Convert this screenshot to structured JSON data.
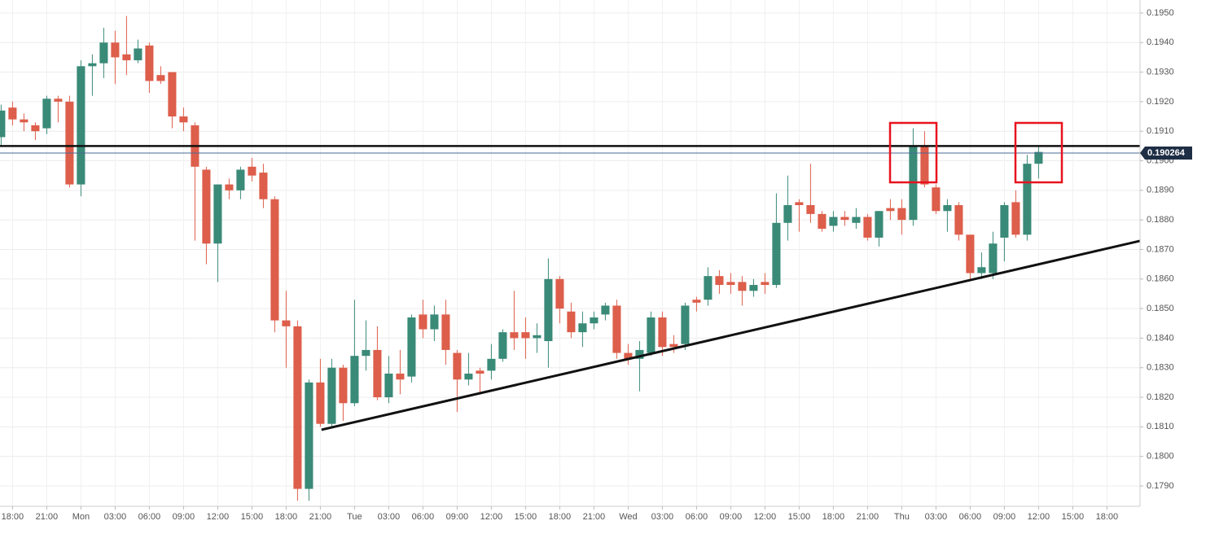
{
  "chart_data": {
    "type": "candlestick",
    "x": [
      -1,
      0,
      1,
      2,
      3,
      4,
      5,
      6,
      7,
      8,
      9,
      10,
      11,
      12,
      13,
      14,
      15,
      16,
      17,
      18,
      19,
      20,
      21,
      22,
      23,
      24,
      25,
      26,
      27,
      28,
      29,
      30,
      31,
      32,
      33,
      34,
      35,
      36,
      37,
      38,
      39,
      40,
      41,
      42,
      43,
      44,
      45,
      46,
      47,
      48,
      49,
      50,
      51,
      52,
      53,
      54,
      55,
      56,
      57,
      58,
      59,
      60,
      61,
      62,
      63,
      64,
      65,
      66,
      67,
      68,
      69,
      70,
      71,
      72,
      73,
      74,
      75,
      76,
      77,
      78,
      79,
      80,
      81,
      82,
      83,
      84,
      85,
      86,
      87,
      88,
      89,
      90
    ],
    "open": [
      0.1908,
      0.1918,
      0.1914,
      0.1912,
      0.1911,
      0.1921,
      0.192,
      0.1892,
      0.1932,
      0.1933,
      0.194,
      0.1936,
      0.1934,
      0.1939,
      0.1929,
      0.193,
      0.1915,
      0.1912,
      0.1897,
      0.1872,
      0.1892,
      0.189,
      0.1898,
      0.1896,
      0.1887,
      0.1846,
      0.1844,
      0.1789,
      0.1825,
      0.1811,
      0.183,
      0.1818,
      0.1834,
      0.1836,
      0.182,
      0.1828,
      0.1827,
      0.1848,
      0.1843,
      0.1848,
      0.1835,
      0.1826,
      0.1829,
      0.1829,
      0.1833,
      0.1842,
      0.1842,
      0.184,
      0.1839,
      0.186,
      0.1849,
      0.1842,
      0.1845,
      0.1848,
      0.1851,
      0.1835,
      0.1833,
      0.1835,
      0.1847,
      0.1838,
      0.1838,
      0.1853,
      0.1853,
      0.1861,
      0.1859,
      0.1859,
      0.1856,
      0.1859,
      0.1858,
      0.1879,
      0.1886,
      0.1885,
      0.1882,
      0.1878,
      0.1881,
      0.1879,
      0.1881,
      0.1874,
      0.1884,
      0.1884,
      0.188,
      0.1905,
      0.1891,
      0.1883,
      0.1885,
      0.1875,
      0.1862,
      0.1862,
      0.1874,
      0.1886,
      0.1875,
      0.1899
    ],
    "high": [
      0.1919,
      0.192,
      0.1916,
      0.1913,
      0.1922,
      0.1922,
      0.1922,
      0.1934,
      0.1936,
      0.1945,
      0.1944,
      0.1949,
      0.1941,
      0.194,
      0.1932,
      0.193,
      0.1918,
      0.1913,
      0.1898,
      0.1892,
      0.1894,
      0.1898,
      0.1901,
      0.1899,
      0.1888,
      0.1856,
      0.1846,
      0.1826,
      0.1833,
      0.1833,
      0.1831,
      0.1853,
      0.1846,
      0.1844,
      0.1834,
      0.1836,
      0.1848,
      0.1853,
      0.1851,
      0.1853,
      0.1836,
      0.1835,
      0.183,
      0.1838,
      0.1843,
      0.1856,
      0.1847,
      0.1845,
      0.1867,
      0.1861,
      0.1852,
      0.1849,
      0.1849,
      0.1852,
      0.1853,
      0.1838,
      0.1839,
      0.1849,
      0.1849,
      0.1841,
      0.1852,
      0.1854,
      0.1864,
      0.1863,
      0.1862,
      0.1861,
      0.186,
      0.1862,
      0.1889,
      0.1895,
      0.1887,
      0.1899,
      0.1883,
      0.1883,
      0.1883,
      0.1884,
      0.1882,
      0.1883,
      0.1887,
      0.1887,
      0.1911,
      0.191,
      0.1892,
      0.1887,
      0.1886,
      0.1875,
      0.1869,
      0.1876,
      0.1886,
      0.189,
      0.1902,
      0.1905
    ],
    "low": [
      0.1905,
      0.1912,
      0.191,
      0.1907,
      0.1909,
      0.1913,
      0.1891,
      0.1888,
      0.1922,
      0.1928,
      0.1926,
      0.1929,
      0.1933,
      0.1923,
      0.1926,
      0.1911,
      0.191,
      0.1873,
      0.1865,
      0.1859,
      0.1887,
      0.1887,
      0.1893,
      0.1884,
      0.1842,
      0.183,
      0.1785,
      0.1785,
      0.181,
      0.181,
      0.1812,
      0.1817,
      0.1829,
      0.1819,
      0.1818,
      0.1821,
      0.1825,
      0.184,
      0.1839,
      0.1831,
      0.1815,
      0.1824,
      0.1821,
      0.1826,
      0.1832,
      0.1836,
      0.1833,
      0.1835,
      0.183,
      0.1845,
      0.184,
      0.1837,
      0.1843,
      0.1846,
      0.1833,
      0.1831,
      0.1822,
      0.1834,
      0.1834,
      0.1835,
      0.1836,
      0.1849,
      0.1851,
      0.1855,
      0.1855,
      0.1851,
      0.1854,
      0.1855,
      0.1857,
      0.1873,
      0.1876,
      0.1879,
      0.1876,
      0.1876,
      0.1878,
      0.1877,
      0.1873,
      0.1871,
      0.188,
      0.1875,
      0.1878,
      0.1891,
      0.1882,
      0.1876,
      0.1873,
      0.186,
      0.186,
      0.186,
      0.1866,
      0.1874,
      0.1873,
      0.1894
    ],
    "close": [
      0.1917,
      0.1914,
      0.1913,
      0.191,
      0.1921,
      0.192,
      0.1892,
      0.1932,
      0.1933,
      0.194,
      0.1935,
      0.1934,
      0.1938,
      0.1927,
      0.1927,
      0.1915,
      0.1913,
      0.1898,
      0.1872,
      0.1892,
      0.189,
      0.1897,
      0.1895,
      0.1887,
      0.1846,
      0.1844,
      0.1789,
      0.1825,
      0.1811,
      0.183,
      0.1818,
      0.1834,
      0.1836,
      0.182,
      0.1828,
      0.1826,
      0.1847,
      0.1843,
      0.1848,
      0.1836,
      0.1826,
      0.1828,
      0.1828,
      0.1833,
      0.1842,
      0.184,
      0.184,
      0.1841,
      0.186,
      0.185,
      0.1842,
      0.1845,
      0.1847,
      0.1851,
      0.1835,
      0.1833,
      0.1836,
      0.1847,
      0.1837,
      0.1837,
      0.1851,
      0.1852,
      0.1861,
      0.1858,
      0.1858,
      0.1856,
      0.1858,
      0.1858,
      0.1879,
      0.1885,
      0.1885,
      0.1882,
      0.1877,
      0.1881,
      0.188,
      0.1881,
      0.1874,
      0.1883,
      0.1883,
      0.188,
      0.1905,
      0.1892,
      0.1883,
      0.1885,
      0.1875,
      0.1862,
      0.1864,
      0.1872,
      0.1885,
      0.1875,
      0.1899,
      0.1903
    ],
    "up_color": "#3a8a78",
    "down_color": "#dd5e4b",
    "xlim": [
      -1.1,
      98.9
    ],
    "ylim": [
      0.17831,
      0.19544
    ],
    "xticks": [
      {
        "value": 0,
        "label": "18:00"
      },
      {
        "value": 3,
        "label": "21:00"
      },
      {
        "value": 6,
        "label": "Mon"
      },
      {
        "value": 9,
        "label": "03:00"
      },
      {
        "value": 12,
        "label": "06:00"
      },
      {
        "value": 15,
        "label": "09:00"
      },
      {
        "value": 18,
        "label": "12:00"
      },
      {
        "value": 21,
        "label": "15:00"
      },
      {
        "value": 24,
        "label": "18:00"
      },
      {
        "value": 27,
        "label": "21:00"
      },
      {
        "value": 30,
        "label": "Tue"
      },
      {
        "value": 33,
        "label": "03:00"
      },
      {
        "value": 36,
        "label": "06:00"
      },
      {
        "value": 39,
        "label": "09:00"
      },
      {
        "value": 42,
        "label": "12:00"
      },
      {
        "value": 45,
        "label": "15:00"
      },
      {
        "value": 48,
        "label": "18:00"
      },
      {
        "value": 51,
        "label": "21:00"
      },
      {
        "value": 54,
        "label": "Wed"
      },
      {
        "value": 57,
        "label": "03:00"
      },
      {
        "value": 60,
        "label": "06:00"
      },
      {
        "value": 63,
        "label": "09:00"
      },
      {
        "value": 66,
        "label": "12:00"
      },
      {
        "value": 69,
        "label": "15:00"
      },
      {
        "value": 72,
        "label": "18:00"
      },
      {
        "value": 75,
        "label": "21:00"
      },
      {
        "value": 78,
        "label": "Thu"
      },
      {
        "value": 81,
        "label": "03:00"
      },
      {
        "value": 84,
        "label": "06:00"
      },
      {
        "value": 87,
        "label": "09:00"
      },
      {
        "value": 90,
        "label": "12:00"
      },
      {
        "value": 93,
        "label": "15:00"
      },
      {
        "value": 96,
        "label": "18:00"
      }
    ],
    "yticks": [
      {
        "value": 0.195,
        "label": "0.1950"
      },
      {
        "value": 0.194,
        "label": "0.1940"
      },
      {
        "value": 0.193,
        "label": "0.1930"
      },
      {
        "value": 0.192,
        "label": "0.1920"
      },
      {
        "value": 0.191,
        "label": "0.1910"
      },
      {
        "value": 0.19,
        "label": "0.1900"
      },
      {
        "value": 0.189,
        "label": "0.1890"
      },
      {
        "value": 0.188,
        "label": "0.1880"
      },
      {
        "value": 0.187,
        "label": "0.1870"
      },
      {
        "value": 0.186,
        "label": "0.1860"
      },
      {
        "value": 0.185,
        "label": "0.1850"
      },
      {
        "value": 0.184,
        "label": "0.1840"
      },
      {
        "value": 0.183,
        "label": "0.1830"
      },
      {
        "value": 0.182,
        "label": "0.1820"
      },
      {
        "value": 0.181,
        "label": "0.1810"
      },
      {
        "value": 0.18,
        "label": "0.1800"
      },
      {
        "value": 0.179,
        "label": "0.1790"
      }
    ],
    "grid": true,
    "last_price": {
      "value": 0.190264,
      "label": "0.190264"
    },
    "support_level": 0.1905,
    "trendline": {
      "x": [
        27.1,
        98.9
      ],
      "y": [
        0.1809,
        0.18729
      ]
    }
  }
}
